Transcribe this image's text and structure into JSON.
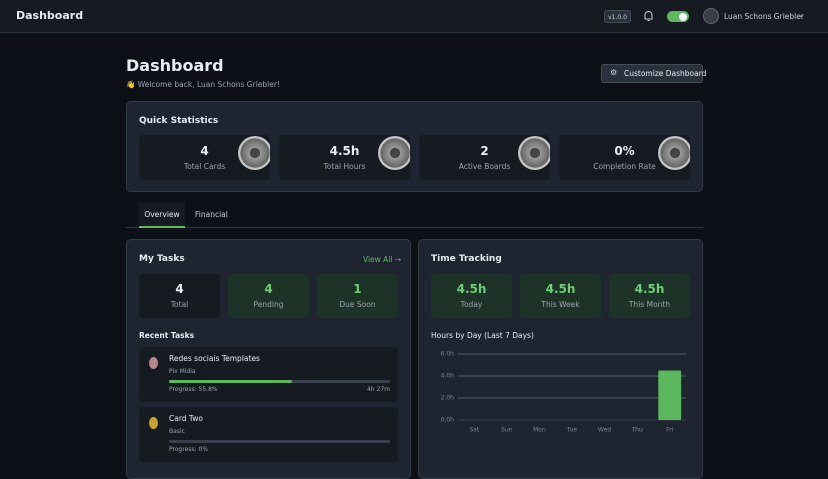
{
  "header": {
    "title": "Dashboard",
    "version": "v1.0.0",
    "user": "Luan Schons Griebler"
  },
  "page": {
    "title": "Dashboard",
    "welcome": "👋 Welcome back, Luan Schons Griebler!",
    "customize": "Customize Dashboard"
  },
  "quick_stats": {
    "title": "Quick Statistics",
    "items": [
      {
        "value": "4",
        "label": "Total Cards"
      },
      {
        "value": "4.5h",
        "label": "Total Hours"
      },
      {
        "value": "2",
        "label": "Active Boards"
      },
      {
        "value": "0%",
        "label": "Completion Rate"
      }
    ]
  },
  "tabs": [
    "Overview",
    "Financial"
  ],
  "my_tasks": {
    "title": "My Tasks",
    "view_all": "View All →",
    "stats": [
      {
        "value": "4",
        "label": "Total"
      },
      {
        "value": "4",
        "label": "Pending"
      },
      {
        "value": "1",
        "label": "Due Soon"
      }
    ],
    "recent_title": "Recent Tasks",
    "tasks": [
      {
        "name": "Redes sociais Templates",
        "board": "Pix Midia",
        "progress": 55.8,
        "progress_label": "Progress: 55.8%",
        "time": "4h 27m"
      },
      {
        "name": "Card Two",
        "board": "Basic",
        "progress": 0,
        "progress_label": "Progress: 0%"
      }
    ]
  },
  "time_tracking": {
    "title": "Time Tracking",
    "stats": [
      {
        "value": "4.5h",
        "label": "Today"
      },
      {
        "value": "4.5h",
        "label": "This Week"
      },
      {
        "value": "4.5h",
        "label": "This Month"
      }
    ],
    "chart": {
      "type": "bar",
      "title": "Hours by Day (Last 7 Days)",
      "categories": [
        "Sat",
        "Sun",
        "Mon",
        "Tue",
        "Wed",
        "Thu",
        "Fri"
      ],
      "values": [
        0,
        0,
        0,
        0,
        0,
        0,
        4.5
      ],
      "color": "#5cb85c",
      "grid": true,
      "ylim": [
        0,
        6
      ],
      "yticks": [
        {
          "value": 0,
          "label": "0.0h"
        },
        {
          "value": 2,
          "label": "2.0h"
        },
        {
          "value": 4,
          "label": "4.0h"
        },
        {
          "value": 6,
          "label": "6.0h"
        }
      ]
    }
  }
}
